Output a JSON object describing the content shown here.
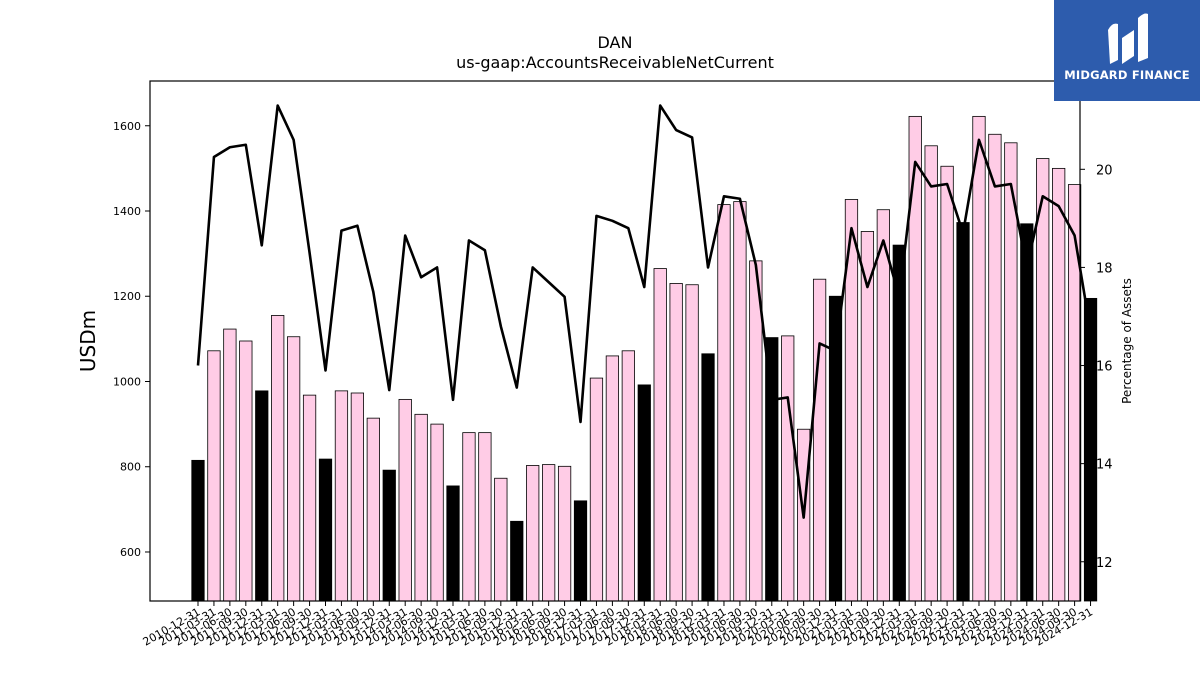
{
  "logo": {
    "text": "MIDGARD FINANCE"
  },
  "chart_data": {
    "type": "bar",
    "title": "DAN",
    "subtitle": "us-gaap:AccountsReceivableNetCurrent",
    "ylabel": "USDm",
    "y2label": "Percentage of Assets",
    "ylim": [
      485,
      1705
    ],
    "y2lim": [
      11.2,
      21.8
    ],
    "yticks": [
      600,
      800,
      1000,
      1200,
      1400,
      1600
    ],
    "y2ticks": [
      12,
      14,
      16,
      18,
      20
    ],
    "colors": {
      "bar_q4": "#000000",
      "bar_other": "#ffcce6",
      "line": "#000000"
    },
    "categories": [
      "2010-12-31",
      "2011-03-31",
      "2011-06-30",
      "2011-09-30",
      "2011-12-31",
      "2012-03-31",
      "2012-06-30",
      "2012-09-30",
      "2012-12-31",
      "2013-03-31",
      "2013-06-30",
      "2013-09-30",
      "2013-12-31",
      "2014-03-31",
      "2014-06-30",
      "2014-09-30",
      "2014-12-31",
      "2015-03-31",
      "2015-06-30",
      "2015-09-30",
      "2015-12-31",
      "2016-03-31",
      "2016-06-30",
      "2016-09-30",
      "2016-12-31",
      "2017-03-31",
      "2017-06-30",
      "2017-09-30",
      "2017-12-31",
      "2018-03-31",
      "2018-06-30",
      "2018-09-30",
      "2018-12-31",
      "2019-03-31",
      "2019-06-30",
      "2019-09-30",
      "2019-12-31",
      "2020-03-31",
      "2020-06-30",
      "2020-09-30",
      "2020-12-31",
      "2021-03-31",
      "2021-06-30",
      "2021-09-30",
      "2021-12-31",
      "2022-03-31",
      "2022-06-30",
      "2022-09-30",
      "2022-12-31",
      "2023-03-31",
      "2023-06-30",
      "2023-09-30",
      "2023-12-31",
      "2024-03-31",
      "2024-06-30",
      "2024-09-30",
      "2024-12-31"
    ],
    "series": [
      {
        "type": "bar",
        "values": [
          815,
          1072,
          1123,
          1095,
          978,
          1155,
          1105,
          968,
          818,
          978,
          973,
          914,
          792,
          958,
          923,
          900,
          755,
          880,
          880,
          773,
          672,
          803,
          805,
          801,
          720,
          1008,
          1060,
          1072,
          992,
          1265,
          1230,
          1227,
          1065,
          1415,
          1422,
          1283,
          1103,
          1107,
          888,
          1240,
          1200,
          1427,
          1352,
          1403,
          1320,
          1622,
          1553,
          1505,
          1373,
          1622,
          1580,
          1560,
          1370,
          1523,
          1500,
          1462,
          1195
        ]
      },
      {
        "type": "line",
        "axis": "right",
        "values": [
          16.0,
          20.25,
          20.45,
          20.5,
          18.45,
          21.3,
          20.6,
          18.3,
          15.9,
          18.75,
          18.85,
          17.5,
          15.5,
          18.65,
          17.8,
          18.0,
          15.3,
          18.55,
          18.35,
          16.8,
          15.55,
          18.0,
          17.7,
          17.4,
          14.85,
          19.05,
          18.95,
          18.8,
          17.6,
          21.3,
          20.8,
          20.65,
          18.0,
          19.45,
          19.4,
          18.05,
          15.3,
          15.35,
          12.9,
          16.45,
          16.3,
          18.8,
          17.6,
          18.55,
          17.4,
          20.15,
          19.65,
          19.7,
          18.7,
          20.6,
          19.65,
          19.7,
          18.0,
          19.45,
          19.25,
          18.65,
          16.7
        ]
      }
    ]
  }
}
